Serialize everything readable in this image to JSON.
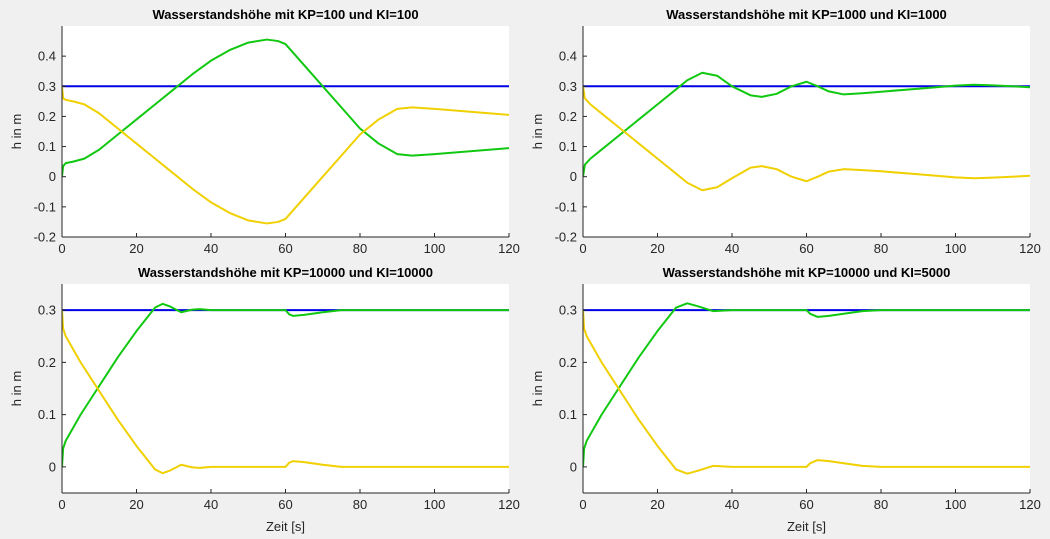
{
  "figure": {
    "background": "#f0f0f0",
    "plot_background": "#ffffff"
  },
  "chart_data": [
    {
      "type": "line",
      "title": "Wasserstandshöhe mit KP=100 und KI=100",
      "xlabel": "",
      "ylabel": "h in m",
      "xlim": [
        0,
        120
      ],
      "ylim": [
        -0.2,
        0.5
      ],
      "xticks": [
        0,
        20,
        40,
        60,
        80,
        100,
        120
      ],
      "yticks": [
        -0.2,
        -0.1,
        0,
        0.1,
        0.2,
        0.3,
        0.4
      ],
      "ytick_labels": [
        "-0.2",
        "-0.1",
        "0",
        "0.1",
        "0.2",
        "0.3",
        "0.4"
      ],
      "grid": false,
      "series": [
        {
          "color": "#0000e6",
          "x": [
            0,
            120
          ],
          "y": [
            0.3,
            0.3
          ]
        },
        {
          "color": "#11c811",
          "x": [
            0,
            0.3,
            1,
            3,
            6,
            10,
            15,
            20,
            25,
            30,
            35,
            40,
            45,
            50,
            55,
            58,
            60,
            65,
            70,
            75,
            80,
            85,
            90,
            94,
            100,
            110,
            120
          ],
          "y": [
            0,
            0.035,
            0.045,
            0.05,
            0.06,
            0.09,
            0.14,
            0.19,
            0.24,
            0.29,
            0.34,
            0.385,
            0.42,
            0.445,
            0.455,
            0.45,
            0.44,
            0.37,
            0.3,
            0.23,
            0.16,
            0.11,
            0.075,
            0.07,
            0.075,
            0.085,
            0.095
          ]
        },
        {
          "color": "#f0d000",
          "x": [
            0,
            0.3,
            1,
            3,
            6,
            10,
            15,
            20,
            25,
            30,
            35,
            40,
            45,
            50,
            55,
            58,
            60,
            65,
            70,
            75,
            80,
            85,
            90,
            94,
            100,
            110,
            120
          ],
          "y": [
            0.3,
            0.26,
            0.255,
            0.25,
            0.24,
            0.21,
            0.16,
            0.11,
            0.06,
            0.01,
            -0.04,
            -0.085,
            -0.12,
            -0.145,
            -0.155,
            -0.15,
            -0.14,
            -0.07,
            0,
            0.07,
            0.14,
            0.19,
            0.225,
            0.23,
            0.225,
            0.215,
            0.205
          ]
        }
      ]
    },
    {
      "type": "line",
      "title": "Wasserstandshöhe mit KP=1000 und KI=1000",
      "xlabel": "",
      "ylabel": "h in m",
      "xlim": [
        0,
        120
      ],
      "ylim": [
        -0.2,
        0.5
      ],
      "xticks": [
        0,
        20,
        40,
        60,
        80,
        100,
        120
      ],
      "yticks": [
        -0.2,
        -0.1,
        0,
        0.1,
        0.2,
        0.3,
        0.4
      ],
      "ytick_labels": [
        "-0.2",
        "-0.1",
        "0",
        "0.1",
        "0.2",
        "0.3",
        "0.4"
      ],
      "grid": false,
      "series": [
        {
          "color": "#0000e6",
          "x": [
            0,
            120
          ],
          "y": [
            0.3,
            0.3
          ]
        },
        {
          "color": "#11c811",
          "x": [
            0,
            0.5,
            2,
            5,
            10,
            15,
            20,
            25,
            28,
            32,
            36,
            40,
            45,
            48,
            52,
            56,
            60,
            63,
            66,
            70,
            75,
            80,
            90,
            100,
            105,
            110,
            120
          ],
          "y": [
            0,
            0.04,
            0.06,
            0.09,
            0.14,
            0.19,
            0.24,
            0.29,
            0.32,
            0.345,
            0.335,
            0.3,
            0.27,
            0.265,
            0.275,
            0.3,
            0.315,
            0.3,
            0.283,
            0.273,
            0.277,
            0.282,
            0.292,
            0.302,
            0.305,
            0.303,
            0.297
          ]
        },
        {
          "color": "#f0d000",
          "x": [
            0,
            0.5,
            2,
            5,
            10,
            15,
            20,
            25,
            28,
            32,
            36,
            40,
            45,
            48,
            52,
            56,
            60,
            63,
            66,
            70,
            75,
            80,
            90,
            100,
            105,
            110,
            120
          ],
          "y": [
            0.3,
            0.26,
            0.24,
            0.21,
            0.16,
            0.11,
            0.06,
            0.01,
            -0.02,
            -0.045,
            -0.035,
            -0.005,
            0.03,
            0.035,
            0.025,
            0,
            -0.015,
            0,
            0.017,
            0.025,
            0.022,
            0.018,
            0.008,
            -0.002,
            -0.005,
            -0.003,
            0.003
          ]
        }
      ]
    },
    {
      "type": "line",
      "title": "Wasserstandshöhe mit KP=10000 und KI=10000",
      "xlabel": "Zeit [s]",
      "ylabel": "h in m",
      "xlim": [
        0,
        120
      ],
      "ylim": [
        -0.05,
        0.35
      ],
      "xticks": [
        0,
        20,
        40,
        60,
        80,
        100,
        120
      ],
      "yticks": [
        0,
        0.1,
        0.2,
        0.3
      ],
      "ytick_labels": [
        "0",
        "0.1",
        "0.2",
        "0.3"
      ],
      "grid": false,
      "series": [
        {
          "color": "#0000e6",
          "x": [
            0,
            120
          ],
          "y": [
            0.3,
            0.3
          ]
        },
        {
          "color": "#11c811",
          "x": [
            0,
            0.3,
            1,
            5,
            10,
            15,
            20,
            25,
            27,
            29,
            32,
            35,
            37,
            40,
            50,
            60,
            61,
            62,
            65,
            70,
            75,
            80,
            90,
            120
          ],
          "y": [
            0,
            0.035,
            0.05,
            0.1,
            0.155,
            0.21,
            0.26,
            0.305,
            0.312,
            0.307,
            0.296,
            0.301,
            0.302,
            0.3,
            0.3,
            0.3,
            0.292,
            0.289,
            0.291,
            0.296,
            0.3,
            0.3,
            0.3,
            0.3
          ]
        },
        {
          "color": "#f0d000",
          "x": [
            0,
            0.3,
            1,
            5,
            10,
            15,
            20,
            25,
            27,
            29,
            32,
            35,
            37,
            40,
            50,
            60,
            61,
            62,
            65,
            70,
            75,
            80,
            90,
            120
          ],
          "y": [
            0.3,
            0.265,
            0.25,
            0.2,
            0.145,
            0.09,
            0.04,
            -0.005,
            -0.012,
            -0.007,
            0.004,
            -0.001,
            -0.002,
            0,
            0,
            0,
            0.008,
            0.011,
            0.009,
            0.004,
            0,
            0,
            0,
            0
          ]
        }
      ]
    },
    {
      "type": "line",
      "title": "Wasserstandshöhe mit KP=10000 und KI=5000",
      "xlabel": "Zeit [s]",
      "ylabel": "h in m",
      "xlim": [
        0,
        120
      ],
      "ylim": [
        -0.05,
        0.35
      ],
      "xticks": [
        0,
        20,
        40,
        60,
        80,
        100,
        120
      ],
      "yticks": [
        0,
        0.1,
        0.2,
        0.3
      ],
      "ytick_labels": [
        "0",
        "0.1",
        "0.2",
        "0.3"
      ],
      "grid": false,
      "series": [
        {
          "color": "#0000e6",
          "x": [
            0,
            120
          ],
          "y": [
            0.3,
            0.3
          ]
        },
        {
          "color": "#11c811",
          "x": [
            0,
            0.3,
            1,
            5,
            10,
            15,
            20,
            25,
            28,
            31,
            35,
            40,
            50,
            60,
            61,
            63,
            66,
            70,
            75,
            80,
            90,
            120
          ],
          "y": [
            0,
            0.035,
            0.05,
            0.1,
            0.155,
            0.21,
            0.26,
            0.305,
            0.313,
            0.307,
            0.298,
            0.3,
            0.3,
            0.3,
            0.293,
            0.287,
            0.289,
            0.293,
            0.298,
            0.3,
            0.3,
            0.3
          ]
        },
        {
          "color": "#f0d000",
          "x": [
            0,
            0.3,
            1,
            5,
            10,
            15,
            20,
            25,
            28,
            31,
            35,
            40,
            50,
            60,
            61,
            63,
            66,
            70,
            75,
            80,
            90,
            120
          ],
          "y": [
            0.3,
            0.265,
            0.25,
            0.2,
            0.145,
            0.09,
            0.04,
            -0.005,
            -0.013,
            -0.007,
            0.002,
            0,
            0,
            0,
            0.007,
            0.013,
            0.011,
            0.007,
            0.002,
            0,
            0,
            0
          ]
        }
      ]
    }
  ]
}
